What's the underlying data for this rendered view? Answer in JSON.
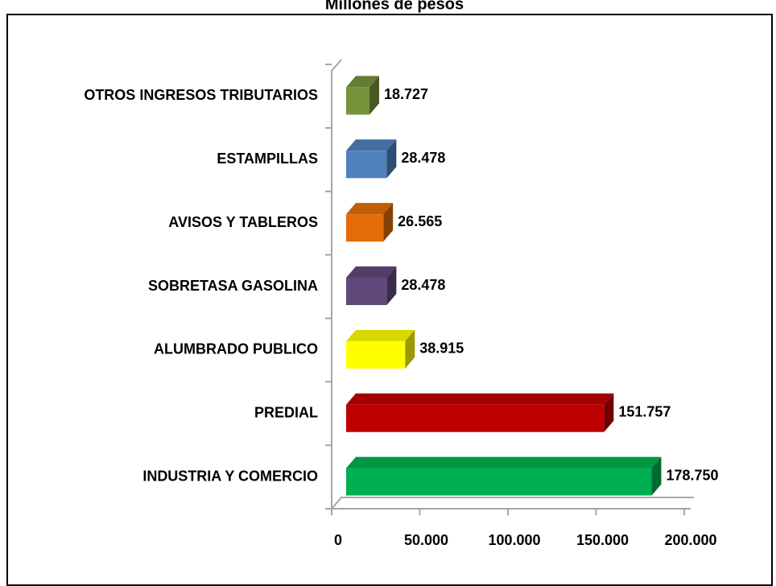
{
  "chart_data": {
    "type": "bar",
    "orientation": "horizontal",
    "title": "Millones de pesos",
    "categories": [
      "INDUSTRIA Y COMERCIO",
      "PREDIAL",
      "ALUMBRADO PUBLICO",
      "SOBRETASA GASOLINA",
      "AVISOS Y TABLEROS",
      "ESTAMPILLAS",
      "OTROS INGRESOS TRIBUTARIOS"
    ],
    "values": [
      178750,
      151757,
      38915,
      28478,
      26565,
      28478,
      18727
    ],
    "value_labels": [
      "178.750",
      "151.757",
      "38.915",
      "28.478",
      "26.565",
      "28.478",
      "18.727"
    ],
    "colors": [
      "#00b050",
      "#c00000",
      "#ffff00",
      "#604a7b",
      "#e36c09",
      "#4f81bd",
      "#77933c"
    ],
    "xlim": [
      0,
      200000
    ],
    "xticks": [
      0,
      {
        "value": 50000,
        "label": "50.000"
      },
      {
        "value": 100000,
        "label": "100.000"
      },
      {
        "value": 150000,
        "label": "150.000"
      },
      {
        "value": 200000,
        "label": "200.000"
      }
    ]
  }
}
